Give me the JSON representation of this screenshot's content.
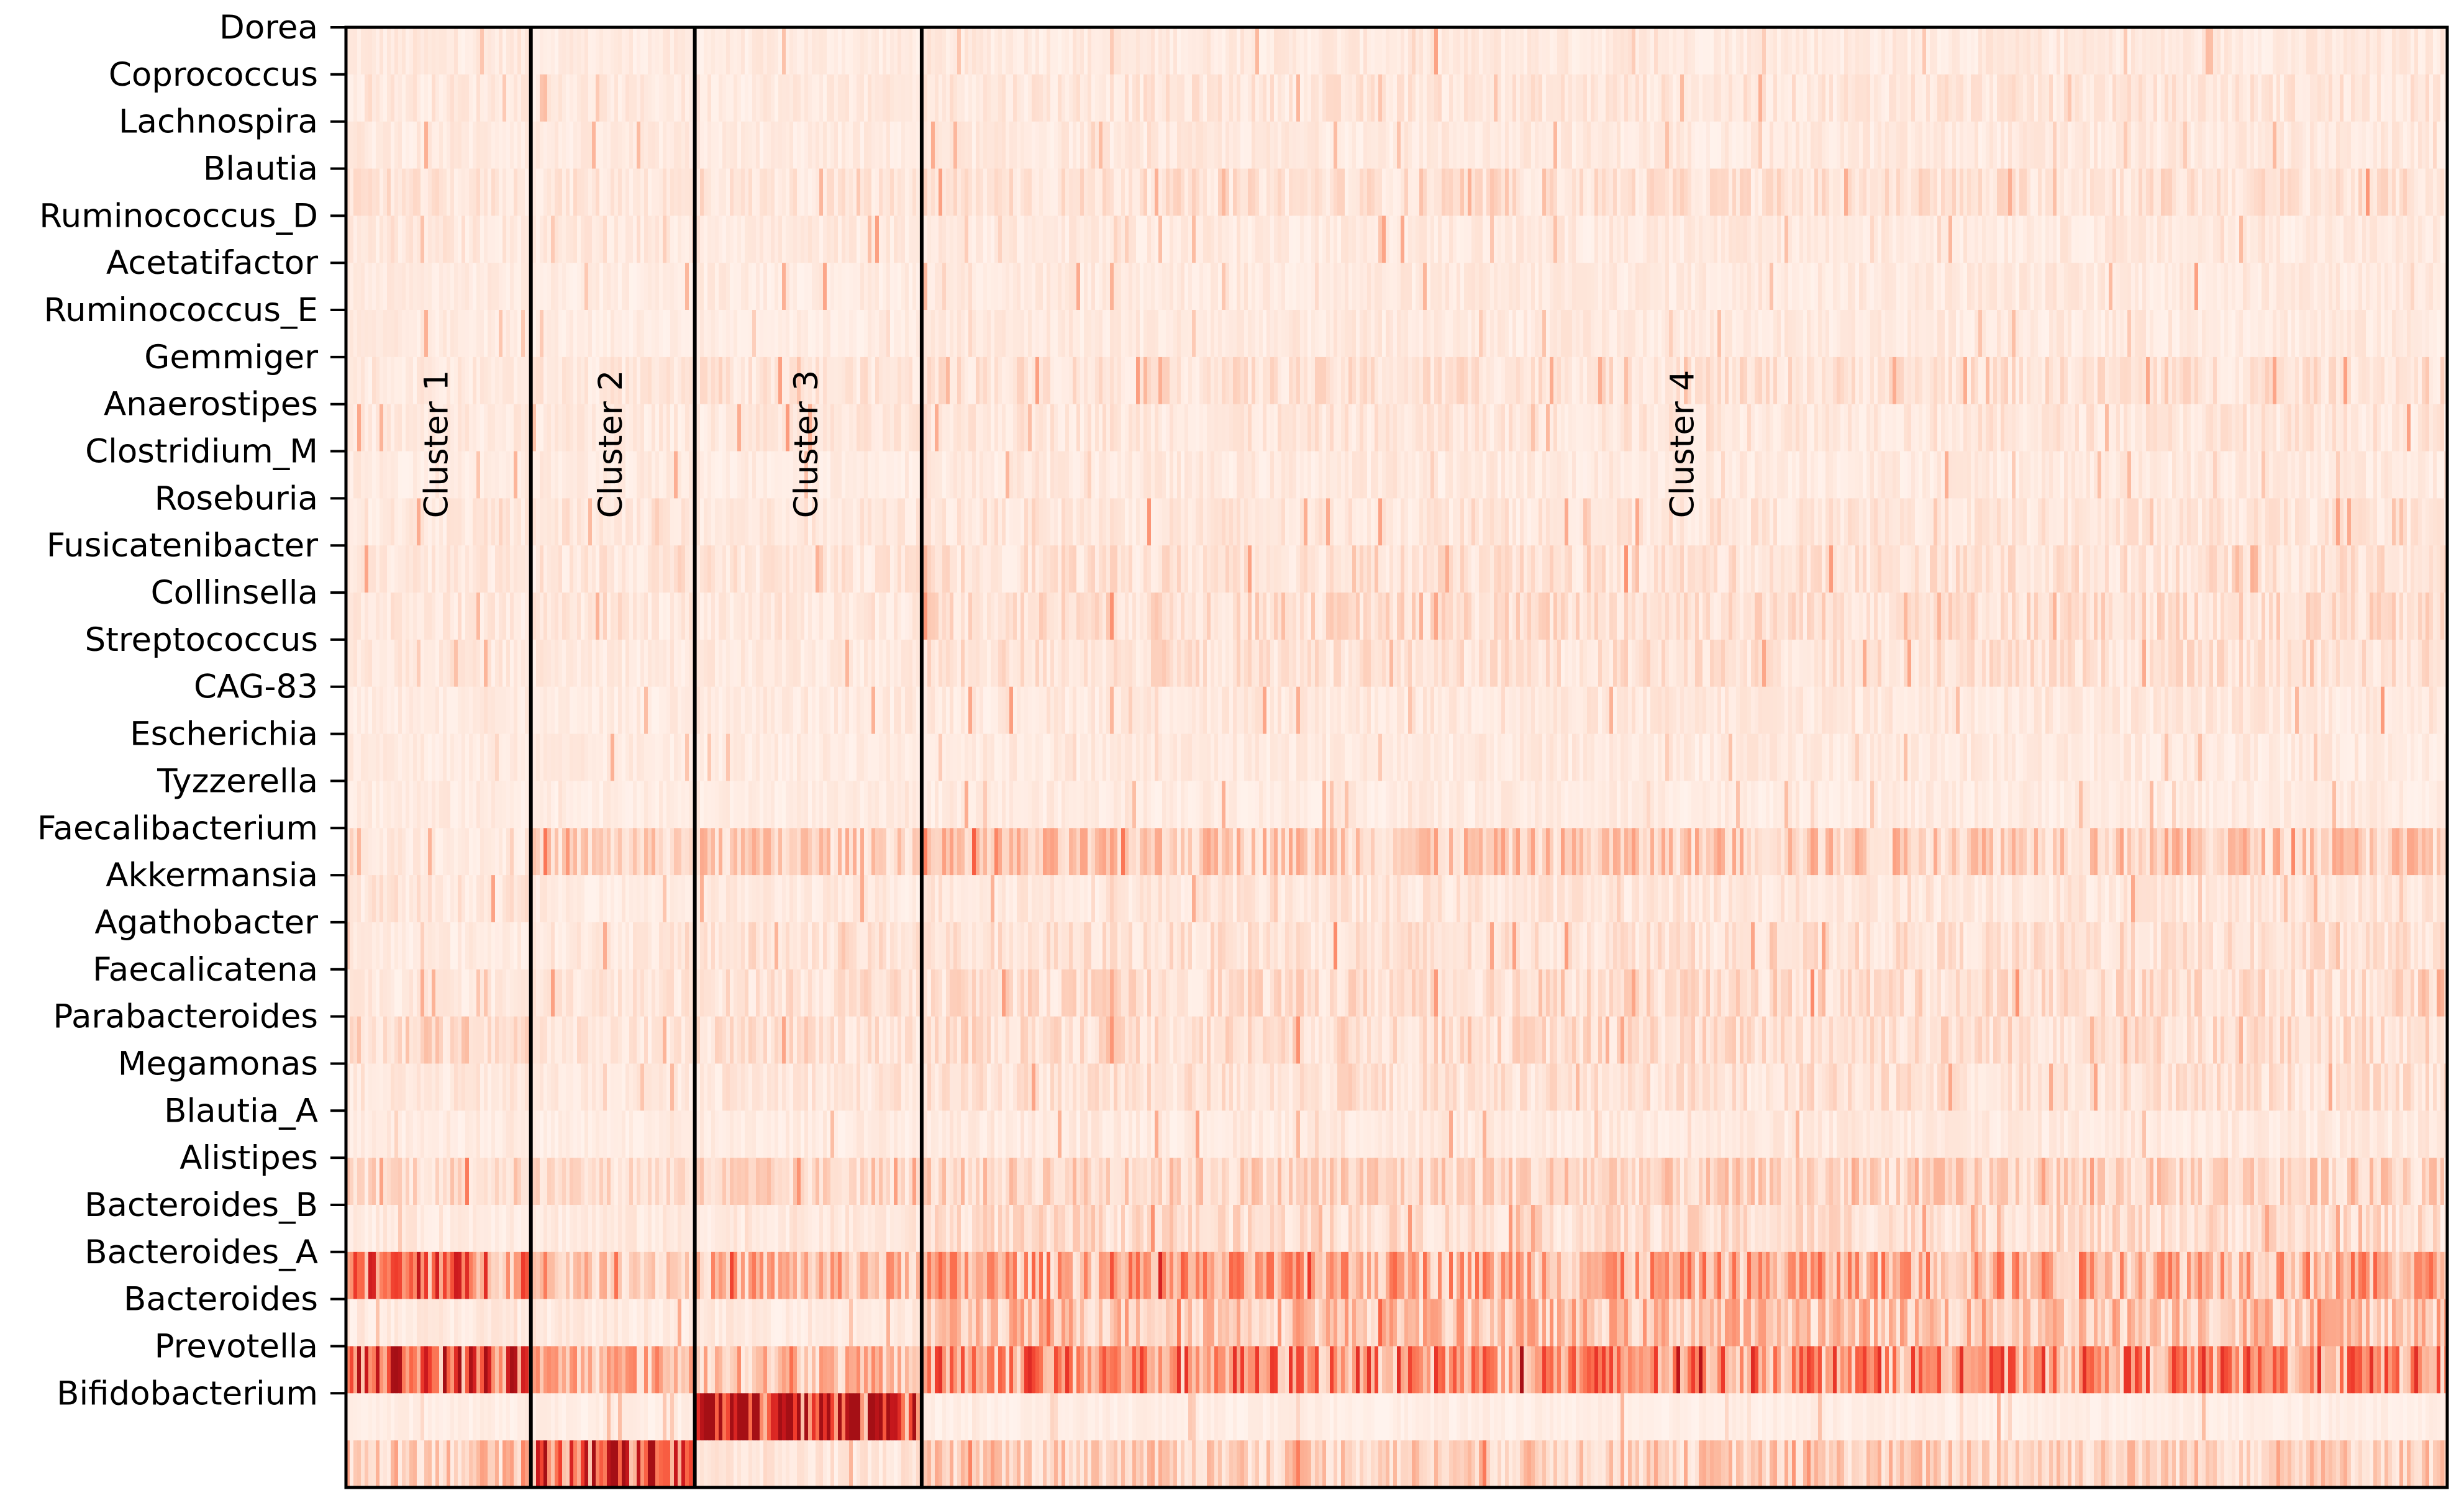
{
  "chart_data": {
    "type": "heatmap",
    "title": "",
    "xlabel": "",
    "ylabel": "",
    "colormap": "Reds",
    "rows": [
      "Dorea",
      "Coprococcus",
      "Lachnospira",
      "Blautia",
      "Ruminococcus_D",
      "Acetatifactor",
      "Ruminococcus_E",
      "Gemmiger",
      "Anaerostipes",
      "Clostridium_M",
      "Roseburia",
      "Fusicatenibacter",
      "Collinsella",
      "Streptococcus",
      "CAG-83",
      "Escherichia",
      "Tyzzerella",
      "Faecalibacterium",
      "Akkermansia",
      "Agathobacter",
      "Faecalicatena",
      "Parabacteroides",
      "Megamonas",
      "Blautia_A",
      "Alistipes",
      "Bacteroides_B",
      "Bacteroides_A",
      "Bacteroides",
      "Prevotella",
      "Bifidobacterium"
    ],
    "clusters": [
      {
        "label": "Cluster 1",
        "fraction": 0.088
      },
      {
        "label": "Cluster 2",
        "fraction": 0.078
      },
      {
        "label": "Cluster 3",
        "fraction": 0.108
      },
      {
        "label": "Cluster 4",
        "fraction": 0.726
      }
    ],
    "row_intensity_by_cluster": [
      [
        0.08,
        0.07,
        0.07,
        0.08
      ],
      [
        0.09,
        0.08,
        0.08,
        0.1
      ],
      [
        0.08,
        0.07,
        0.07,
        0.08
      ],
      [
        0.1,
        0.1,
        0.1,
        0.12
      ],
      [
        0.09,
        0.08,
        0.08,
        0.08
      ],
      [
        0.07,
        0.06,
        0.07,
        0.08
      ],
      [
        0.07,
        0.06,
        0.06,
        0.08
      ],
      [
        0.08,
        0.09,
        0.1,
        0.12
      ],
      [
        0.08,
        0.08,
        0.09,
        0.1
      ],
      [
        0.07,
        0.07,
        0.07,
        0.08
      ],
      [
        0.09,
        0.1,
        0.09,
        0.1
      ],
      [
        0.09,
        0.1,
        0.1,
        0.12
      ],
      [
        0.09,
        0.09,
        0.09,
        0.14
      ],
      [
        0.09,
        0.08,
        0.08,
        0.12
      ],
      [
        0.07,
        0.07,
        0.08,
        0.09
      ],
      [
        0.07,
        0.07,
        0.07,
        0.08
      ],
      [
        0.07,
        0.06,
        0.06,
        0.07
      ],
      [
        0.08,
        0.18,
        0.2,
        0.22
      ],
      [
        0.1,
        0.07,
        0.08,
        0.1
      ],
      [
        0.07,
        0.09,
        0.12,
        0.12
      ],
      [
        0.08,
        0.1,
        0.12,
        0.14
      ],
      [
        0.16,
        0.1,
        0.12,
        0.14
      ],
      [
        0.09,
        0.08,
        0.1,
        0.12
      ],
      [
        0.07,
        0.06,
        0.07,
        0.08
      ],
      [
        0.16,
        0.14,
        0.16,
        0.18
      ],
      [
        0.08,
        0.08,
        0.09,
        0.14
      ],
      [
        0.5,
        0.22,
        0.28,
        0.34
      ],
      [
        0.08,
        0.08,
        0.08,
        0.25
      ],
      [
        0.62,
        0.3,
        0.26,
        0.44
      ],
      [
        0.05,
        0.05,
        0.82,
        0.05
      ]
    ],
    "extra_bottom_row_intensity_by_cluster": [
      0.22,
      0.72,
      0.1,
      0.2
    ]
  }
}
